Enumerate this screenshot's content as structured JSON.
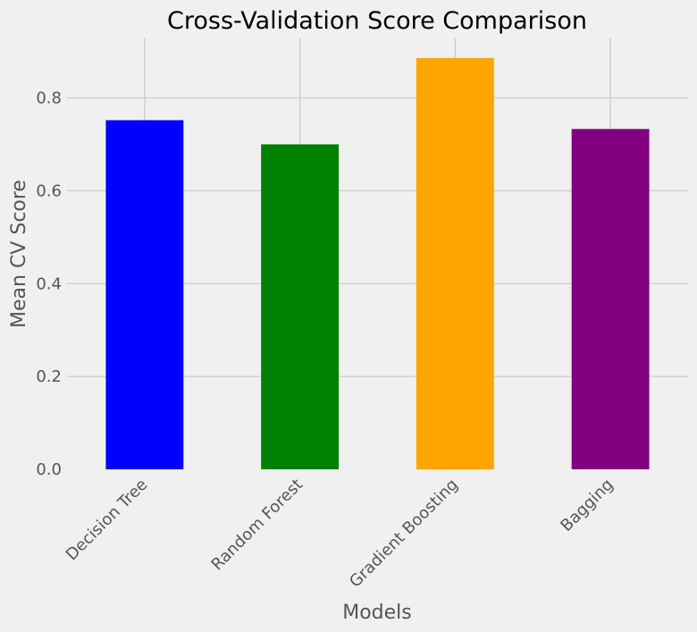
{
  "chart_data": {
    "type": "bar",
    "title": "Cross-Validation Score Comparison",
    "xlabel": "Models",
    "ylabel": "Mean CV Score",
    "categories": [
      "Decision Tree",
      "Random Forest",
      "Gradient Boosting",
      "Bagging"
    ],
    "values": [
      0.752,
      0.7,
      0.886,
      0.733
    ],
    "colors": [
      "#0000ff",
      "#008000",
      "#ffa500",
      "#800080"
    ],
    "ylim": [
      0,
      0.93
    ],
    "yticks": [
      "0.0",
      "0.2",
      "0.4",
      "0.6",
      "0.8"
    ],
    "grid": true,
    "background": "#f0f0f0"
  }
}
